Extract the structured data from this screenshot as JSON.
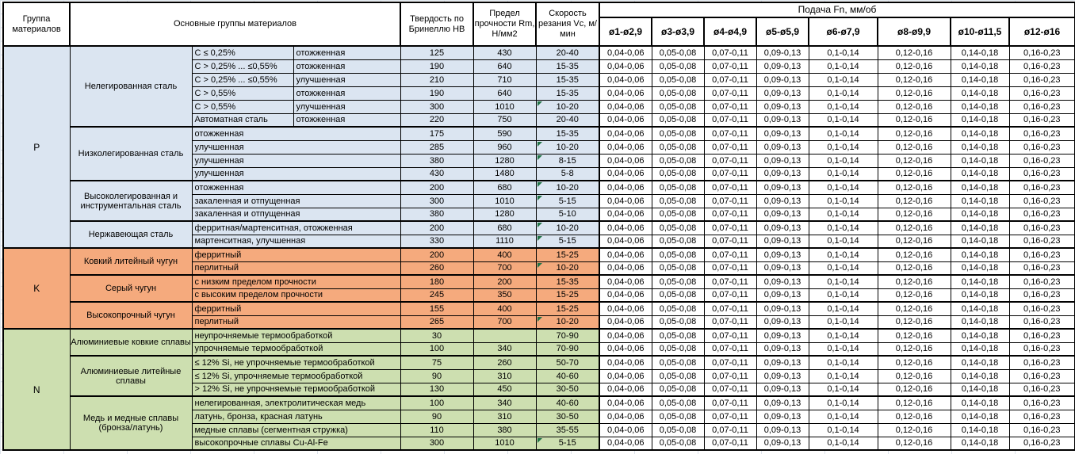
{
  "header": {
    "col_group": "Группа материалов",
    "col_main_groups": "Основные группы материалов",
    "col_hardness": "Твердость по Бринеллю НВ",
    "col_strength": "Предел прочности Rm, Н/мм2",
    "col_speed": "Скорость резания Vc, м/мин",
    "feed_title": "Подача Fn, мм/об",
    "feed_cols": [
      "ø1-ø2,9",
      "ø3-ø3,9",
      "ø4-ø4,9",
      "ø5-ø5,9",
      "ø6-ø7,9",
      "ø8-ø9,9",
      "ø10-ø11,5",
      "ø12-ø16"
    ]
  },
  "feed_values": [
    "0,04-0,06",
    "0,05-0,08",
    "0,07-0,11",
    "0,09-0,13",
    "0,1-0,14",
    "0,12-0,16",
    "0,14-0,18",
    "0,16-0,23"
  ],
  "colors": {
    "group_p": "#dbe5f1",
    "group_k": "#f5aa7d",
    "group_n": "#cddfb0",
    "error_triangle": "#217346",
    "border": "#000000",
    "gridline": "#dde3ec"
  },
  "groups": [
    {
      "code": "P",
      "color": "#dbe5f1",
      "subgroups": [
        {
          "name": "Нелегированная сталь",
          "rows": [
            {
              "spec": "C ≤ 0,25%",
              "state": "отожженная",
              "hb": "125",
              "rm": "430",
              "vc": "20-40",
              "flag": false
            },
            {
              "spec": "C > 0,25% ... ≤0,55%",
              "state": "отожженная",
              "hb": "190",
              "rm": "640",
              "vc": "15-35",
              "flag": false
            },
            {
              "spec": "C > 0,25% ... ≤0,55%",
              "state": "улучшенная",
              "hb": "210",
              "rm": "710",
              "vc": "15-35",
              "flag": false
            },
            {
              "spec": "C > 0,55%",
              "state": "отожженная",
              "hb": "190",
              "rm": "640",
              "vc": "15-35",
              "flag": false
            },
            {
              "spec": "C > 0,55%",
              "state": "улучшенная",
              "hb": "300",
              "rm": "1010",
              "vc": "10-20",
              "flag": true
            },
            {
              "spec": "Автоматная сталь",
              "state": "отожженная",
              "hb": "220",
              "rm": "750",
              "vc": "20-40",
              "flag": false
            }
          ]
        },
        {
          "name": "Низколегированная сталь",
          "rows": [
            {
              "spec": null,
              "state": "отожженная",
              "hb": "175",
              "rm": "590",
              "vc": "15-35",
              "flag": false
            },
            {
              "spec": null,
              "state": "улучшенная",
              "hb": "285",
              "rm": "960",
              "vc": "10-20",
              "flag": true
            },
            {
              "spec": null,
              "state": "улучшенная",
              "hb": "380",
              "rm": "1280",
              "vc": "8-15",
              "flag": true
            },
            {
              "spec": null,
              "state": "улучшенная",
              "hb": "430",
              "rm": "1480",
              "vc": "5-8",
              "flag": false
            }
          ]
        },
        {
          "name": "Высоколегированная и инструментальная сталь",
          "rows": [
            {
              "spec": null,
              "state": "отожженная",
              "hb": "200",
              "rm": "680",
              "vc": "10-20",
              "flag": true
            },
            {
              "spec": null,
              "state": "закаленная и отпущенная",
              "hb": "300",
              "rm": "1010",
              "vc": "5-15",
              "flag": true
            },
            {
              "spec": null,
              "state": "закаленная и отпущенная",
              "hb": "380",
              "rm": "1280",
              "vc": "5-10",
              "flag": false
            }
          ]
        },
        {
          "name": "Нержавеющая сталь",
          "rows": [
            {
              "spec": null,
              "state": "ферритная/мартенситная, отожженная",
              "hb": "200",
              "rm": "680",
              "vc": "10-20",
              "flag": true
            },
            {
              "spec": null,
              "state": "мартенситная, улучшенная",
              "hb": "330",
              "rm": "1110",
              "vc": "5-15",
              "flag": true
            }
          ]
        }
      ]
    },
    {
      "code": "K",
      "color": "#f5aa7d",
      "subgroups": [
        {
          "name": "Ковкий литейный чугун",
          "rows": [
            {
              "spec": null,
              "state": "ферритный",
              "hb": "200",
              "rm": "400",
              "vc": "15-25",
              "flag": false
            },
            {
              "spec": null,
              "state": "перлитный",
              "hb": "260",
              "rm": "700",
              "vc": "10-20",
              "flag": true
            }
          ]
        },
        {
          "name": "Серый чугун",
          "rows": [
            {
              "spec": null,
              "state": "с низким пределом прочности",
              "hb": "180",
              "rm": "200",
              "vc": "15-35",
              "flag": false
            },
            {
              "spec": null,
              "state": "с высоким пределом прочности",
              "hb": "245",
              "rm": "350",
              "vc": "15-25",
              "flag": false
            }
          ]
        },
        {
          "name": "Высокопрочный чугун",
          "rows": [
            {
              "spec": null,
              "state": "ферритный",
              "hb": "155",
              "rm": "400",
              "vc": "15-25",
              "flag": false
            },
            {
              "spec": null,
              "state": "перлитный",
              "hb": "265",
              "rm": "700",
              "vc": "10-20",
              "flag": true
            }
          ]
        }
      ]
    },
    {
      "code": "N",
      "color": "#cddfb0",
      "subgroups": [
        {
          "name": "Алюминиевые ковкие сплавы",
          "rows": [
            {
              "spec": null,
              "state": "неупрочняемые термообработкой",
              "hb": "30",
              "rm": "",
              "vc": "70-90",
              "flag": false
            },
            {
              "spec": null,
              "state": "упрочняемые термообработкой",
              "hb": "100",
              "rm": "340",
              "vc": "70-90",
              "flag": false
            }
          ]
        },
        {
          "name": "Алюминиевые литейные сплавы",
          "rows": [
            {
              "spec": null,
              "state": "≤ 12% Si, не упрочняемые термообработкой",
              "hb": "75",
              "rm": "260",
              "vc": "50-70",
              "flag": false
            },
            {
              "spec": null,
              "state": "≤ 12% Si, упрочняемые термообработкой",
              "hb": "90",
              "rm": "310",
              "vc": "40-60",
              "flag": false
            },
            {
              "spec": null,
              "state": "> 12% Si, не упрочняемые термообработкой",
              "hb": "130",
              "rm": "450",
              "vc": "30-50",
              "flag": false
            }
          ]
        },
        {
          "name": "Медь и медные сплавы (бронза/латунь)",
          "rows": [
            {
              "spec": null,
              "state": "нелегированная, электролитическая медь",
              "hb": "100",
              "rm": "340",
              "vc": "40-60",
              "flag": false
            },
            {
              "spec": null,
              "state": "латунь, бронза, красная латунь",
              "hb": "90",
              "rm": "310",
              "vc": "30-50",
              "flag": false
            },
            {
              "spec": null,
              "state": "медные сплавы (сегментная стружка)",
              "hb": "110",
              "rm": "380",
              "vc": "35-55",
              "flag": false
            },
            {
              "spec": null,
              "state": "высокопрочные сплавы Cu-Al-Fe",
              "hb": "300",
              "rm": "1010",
              "vc": "5-15",
              "flag": true
            }
          ]
        }
      ]
    }
  ]
}
